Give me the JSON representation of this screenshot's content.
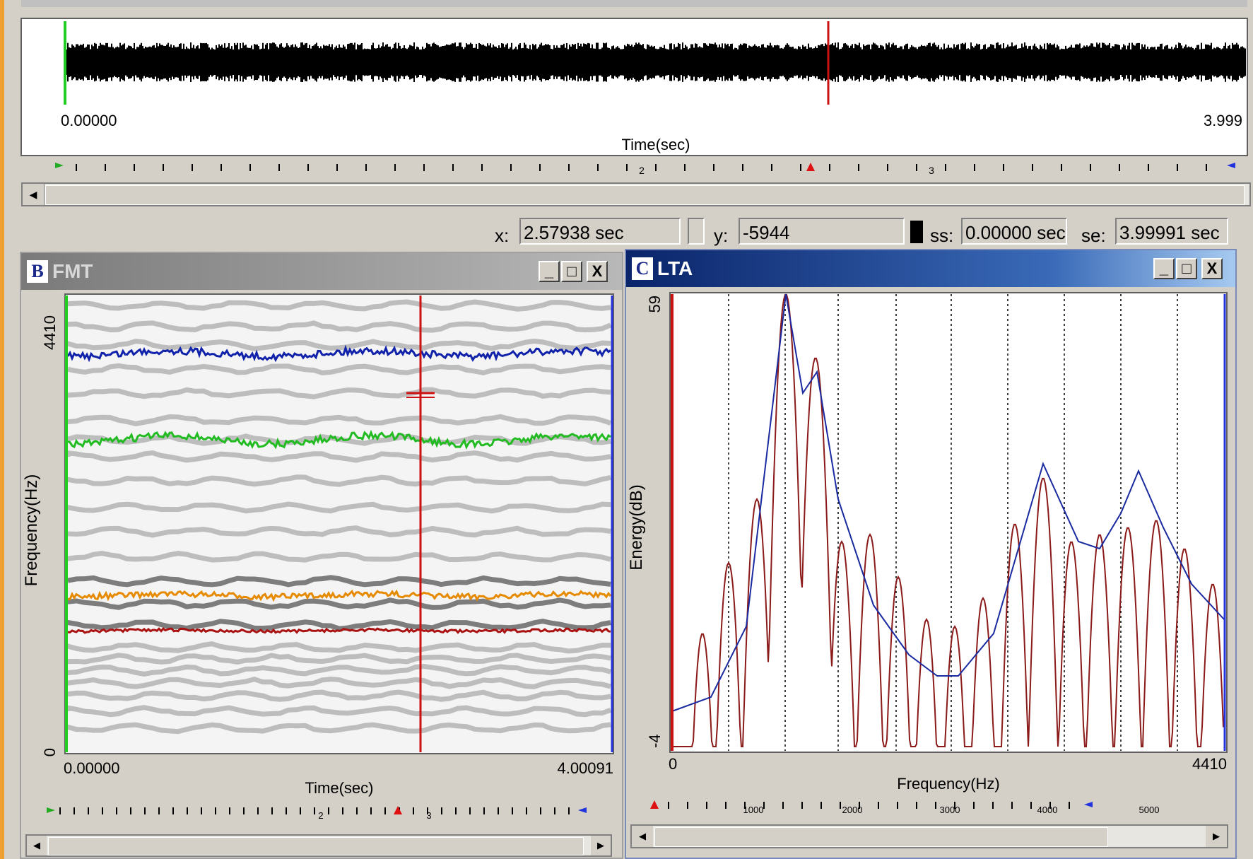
{
  "top_panel": {
    "time_start": "0.00000",
    "time_end": "3.999",
    "xlabel": "Time(sec)",
    "ruler_labels": [
      "2",
      "3"
    ]
  },
  "status": {
    "x_label": "x:",
    "x_value": "2.57938 sec",
    "y_label": "y:",
    "y_value": "-5944",
    "ss_label": "ss:",
    "ss_value": "0.00000 sec",
    "se_label": "se:",
    "se_value": "3.99991 sec"
  },
  "fmt_window": {
    "letter": "B",
    "title": "FMT",
    "ylabel": "Frequency(Hz)",
    "ymax": "4410",
    "ymin": "0",
    "time_start": "0.00000",
    "time_end": "4.00091",
    "xlabel": "Time(sec)",
    "ruler_labels": [
      "2",
      "3"
    ],
    "btn_min": "_",
    "btn_max": "□",
    "btn_close": "X"
  },
  "lta_window": {
    "letter": "C",
    "title": "LTA",
    "ylabel": "Energy(dB)",
    "ymax": "59",
    "ymin": "-4",
    "xmin": "0",
    "xmax": "4410",
    "xlabel": "Frequency(Hz)",
    "ruler_labels": [
      "1000",
      "2000",
      "3000",
      "4000",
      "5000"
    ],
    "btn_min": "_",
    "btn_max": "□",
    "btn_close": "X"
  },
  "colors": {
    "cursor": "#cc1111",
    "formant1": "#aa1111",
    "formant2": "#e68a00",
    "formant3": "#22bb22",
    "formant4": "#1122aa",
    "spectrum": "#8b1a1a",
    "envelope": "#1a2aa0"
  }
}
